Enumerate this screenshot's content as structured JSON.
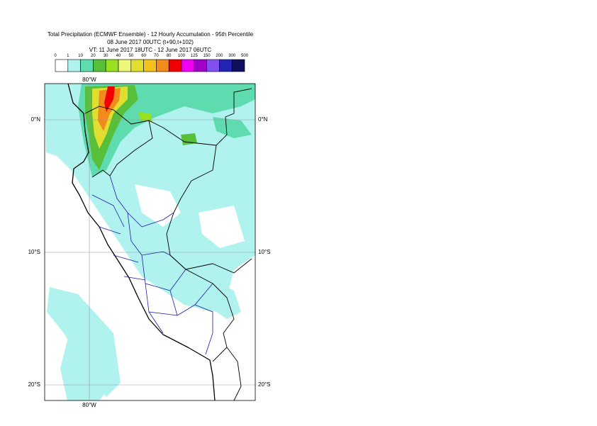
{
  "header": {
    "lines": [
      "Total Precipitation (ECMWF Ensemble) - 12 Hourly Accumulation - 95th Percentile",
      "08 June 2017 00UTC (t+90,t+102)",
      "VT: 11 June 2017 18UTC - 12 June 2017 06UTC"
    ]
  },
  "legend": {
    "ticks": [
      0,
      1,
      10,
      20,
      30,
      40,
      50,
      60,
      70,
      80,
      100,
      125,
      150,
      200,
      300,
      500
    ],
    "colors": [
      "#ffffff",
      "#b0f2ee",
      "#5edcb0",
      "#58bf3a",
      "#98e020",
      "#eef77a",
      "#e0de30",
      "#f2c21e",
      "#f28a1c",
      "#f00000",
      "#f000f0",
      "#a000c8",
      "#8050f0",
      "#2424b4",
      "#10105e"
    ]
  },
  "map": {
    "lat_labels_left": [
      "0°N",
      "10°S",
      "20°S"
    ],
    "lat_labels_right": [
      "0°N",
      "10°S",
      "20°S"
    ],
    "lon_label_top": "80°W",
    "lon_label_bottom": "80°W"
  }
}
